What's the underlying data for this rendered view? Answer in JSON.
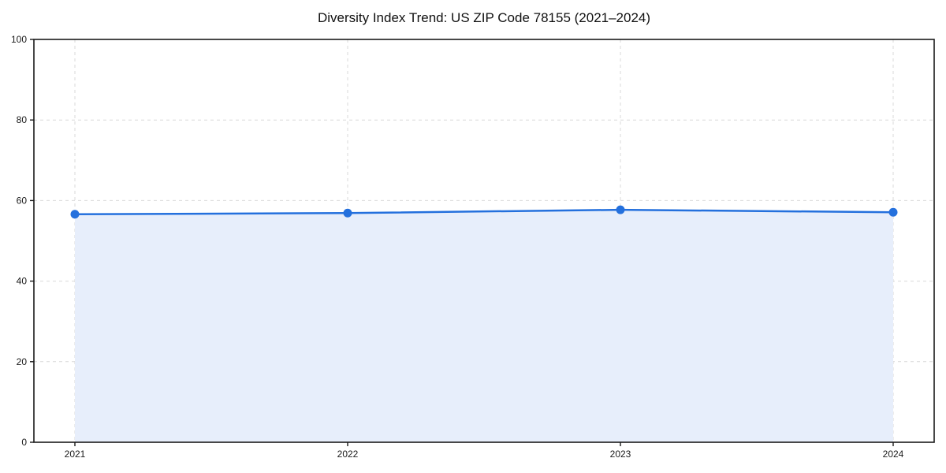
{
  "chart_data": {
    "type": "area",
    "title": "Diversity Index Trend: US ZIP Code 78155 (2021–2024)",
    "x": [
      "2021",
      "2022",
      "2023",
      "2024"
    ],
    "series": [
      {
        "name": "Diversity Index",
        "values": [
          56.6,
          56.9,
          57.7,
          57.1
        ]
      }
    ],
    "xlabel": "",
    "ylabel": "",
    "ylim": [
      0,
      100
    ],
    "yticks": [
      0,
      20,
      40,
      60,
      80,
      100
    ],
    "grid": {
      "visible": true,
      "style": "dashed",
      "axes": "both"
    },
    "legend": "none",
    "colors": {
      "line": "#2470dd",
      "marker": "#2470dd",
      "fill": "#e7eefb",
      "gridline": "#d9d9d9",
      "axis": "#1a1a1a",
      "background": "#ffffff",
      "tick_text": "#1a1a1a"
    }
  }
}
